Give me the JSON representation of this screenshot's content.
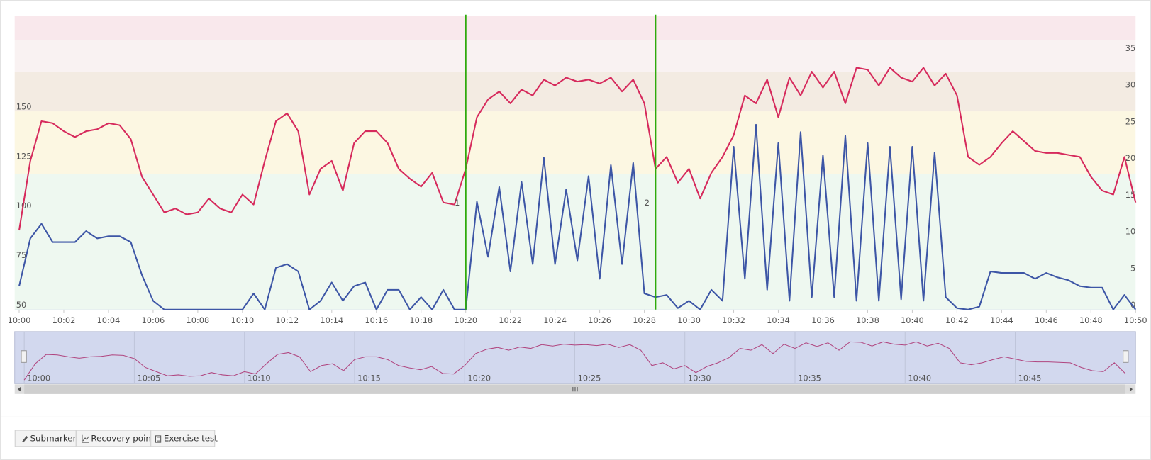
{
  "chart_data": {
    "type": "line",
    "x": [
      0,
      0.5,
      1,
      1.5,
      2,
      2.5,
      3,
      3.5,
      4,
      4.5,
      5,
      5.5,
      6,
      6.5,
      7,
      7.5,
      8,
      8.5,
      9,
      9.5,
      10,
      10.5,
      11,
      11.5,
      12,
      12.5,
      13,
      13.5,
      14,
      14.5,
      15,
      15.5,
      16,
      16.5,
      17,
      17.5,
      18,
      18.5,
      19,
      19.5,
      20,
      20.5,
      21,
      21.5,
      22,
      22.5,
      23,
      23.5,
      24,
      24.5,
      25,
      25.5,
      26,
      26.5,
      27,
      27.5,
      28,
      28.5,
      29,
      29.5,
      30,
      30.5,
      31,
      31.5,
      32,
      32.5,
      33,
      33.5,
      34,
      34.5,
      35,
      35.5,
      36,
      36.5,
      37,
      37.5,
      38,
      38.5,
      39,
      39.5,
      40,
      40.5,
      41,
      41.5,
      42,
      42.5,
      43,
      43.5,
      44,
      44.5,
      45,
      45.5,
      46,
      46.5,
      47,
      47.5,
      48,
      48.5,
      49,
      49.5,
      50
    ],
    "xlim": [
      -0.2,
      50
    ],
    "xticks": [
      {
        "value": 0,
        "label": "10:00"
      },
      {
        "value": 2,
        "label": "10:02"
      },
      {
        "value": 4,
        "label": "10:04"
      },
      {
        "value": 6,
        "label": "10:06"
      },
      {
        "value": 8,
        "label": "10:08"
      },
      {
        "value": 10,
        "label": "10:10"
      },
      {
        "value": 12,
        "label": "10:12"
      },
      {
        "value": 14,
        "label": "10:14"
      },
      {
        "value": 16,
        "label": "10:16"
      },
      {
        "value": 18,
        "label": "10:18"
      },
      {
        "value": 20,
        "label": "10:20"
      },
      {
        "value": 22,
        "label": "10:22"
      },
      {
        "value": 24,
        "label": "10:24"
      },
      {
        "value": 26,
        "label": "10:26"
      },
      {
        "value": 28,
        "label": "10:28"
      },
      {
        "value": 30,
        "label": "10:30"
      },
      {
        "value": 32,
        "label": "10:32"
      },
      {
        "value": 34,
        "label": "10:34"
      },
      {
        "value": 36,
        "label": "10:36"
      },
      {
        "value": 38,
        "label": "10:38"
      },
      {
        "value": 40,
        "label": "10:40"
      },
      {
        "value": 42,
        "label": "10:42"
      },
      {
        "value": 44,
        "label": "10:44"
      },
      {
        "value": 46,
        "label": "10:46"
      },
      {
        "value": 48,
        "label": "10:48"
      },
      {
        "value": 50,
        "label": "10:50"
      }
    ],
    "ylim": [
      50,
      198
    ],
    "yticks": [
      50,
      75,
      100,
      125,
      150
    ],
    "y2lim": [
      0,
      40
    ],
    "y2ticks": [
      0,
      5,
      10,
      15,
      20,
      25,
      30,
      35
    ],
    "grid": false,
    "zones": [
      {
        "from": 50,
        "to": 118.5,
        "color": "#eef8f0"
      },
      {
        "from": 118.5,
        "to": 150,
        "color": "#fcf7e2"
      },
      {
        "from": 150,
        "to": 170,
        "color": "#f3ebe2"
      },
      {
        "from": 170,
        "to": 186,
        "color": "#f9f2f2"
      },
      {
        "from": 186,
        "to": 198,
        "color": "#f9e8ec"
      }
    ],
    "markers": [
      {
        "x": 20,
        "label": "1",
        "color": "#2eaa0c"
      },
      {
        "x": 28.5,
        "label": "2",
        "color": "#2eaa0c"
      }
    ],
    "series": [
      {
        "color": "#d62a5c",
        "values": [
          90,
          125,
          145,
          144,
          140,
          137,
          140,
          141,
          144,
          143,
          136,
          117,
          108,
          99,
          101,
          98,
          99,
          106,
          101,
          99,
          108,
          103,
          125,
          145,
          149,
          140,
          108,
          121,
          125,
          110,
          134,
          140,
          140,
          134,
          121,
          116,
          112,
          119,
          104,
          103,
          121,
          147,
          156,
          160,
          154,
          161,
          158,
          166,
          163,
          167,
          165,
          166,
          164,
          167,
          160,
          166,
          154,
          121,
          127,
          114,
          121,
          106,
          119,
          127,
          138,
          158,
          154,
          166,
          147,
          167,
          158,
          170,
          162,
          170,
          154,
          172,
          171,
          163,
          172,
          167,
          165,
          172,
          163,
          169,
          158,
          127,
          123,
          127,
          134,
          140,
          135,
          130,
          129,
          129,
          128,
          127,
          117,
          110,
          108,
          127,
          104
        ]
      },
      {
        "color": "#3d56a6",
        "axis": "y2",
        "values": [
          3.2,
          9.7,
          11.7,
          9.2,
          9.2,
          9.2,
          10.7,
          9.7,
          10,
          10,
          9.2,
          4.7,
          1.2,
          0,
          0,
          0,
          0,
          0,
          0,
          0,
          0,
          2.2,
          0,
          5.7,
          6.2,
          5.2,
          0,
          1.2,
          3.7,
          1.2,
          3.2,
          3.7,
          0,
          2.7,
          2.7,
          0,
          1.7,
          0,
          2.7,
          0,
          0,
          14.7,
          7.2,
          16.7,
          5.2,
          17.4,
          6.2,
          20.7,
          6.2,
          16.4,
          6.7,
          18.2,
          4.2,
          19.7,
          6.2,
          20,
          2.2,
          1.7,
          2,
          0.2,
          1.2,
          0,
          2.7,
          1.2,
          22.2,
          4.2,
          25.2,
          2.7,
          22.7,
          1.2,
          24.2,
          1.7,
          21,
          1.7,
          23.7,
          1.2,
          22.7,
          1.2,
          22.2,
          1.4,
          22.2,
          1.2,
          21.4,
          1.7,
          0.2,
          0,
          0.4,
          5.2,
          5,
          5,
          5,
          4.2,
          5,
          4.4,
          4,
          3.2,
          3,
          3,
          0,
          2,
          0
        ]
      }
    ],
    "navigator": {
      "xlim": [
        0,
        50
      ],
      "xticks": [
        {
          "value": 0,
          "label": "10:00"
        },
        {
          "value": 5,
          "label": "10:05"
        },
        {
          "value": 10,
          "label": "10:10"
        },
        {
          "value": 15,
          "label": "10:15"
        },
        {
          "value": 20,
          "label": "10:20"
        },
        {
          "value": 25,
          "label": "10:25"
        },
        {
          "value": 30,
          "label": "10:30"
        },
        {
          "value": 35,
          "label": "10:35"
        },
        {
          "value": 40,
          "label": "10:40"
        },
        {
          "value": 45,
          "label": "10:45"
        }
      ],
      "color": "#b0457f"
    }
  },
  "toolbar": {
    "buttons": [
      "Submarker",
      "Recovery point",
      "Exercise test"
    ]
  }
}
